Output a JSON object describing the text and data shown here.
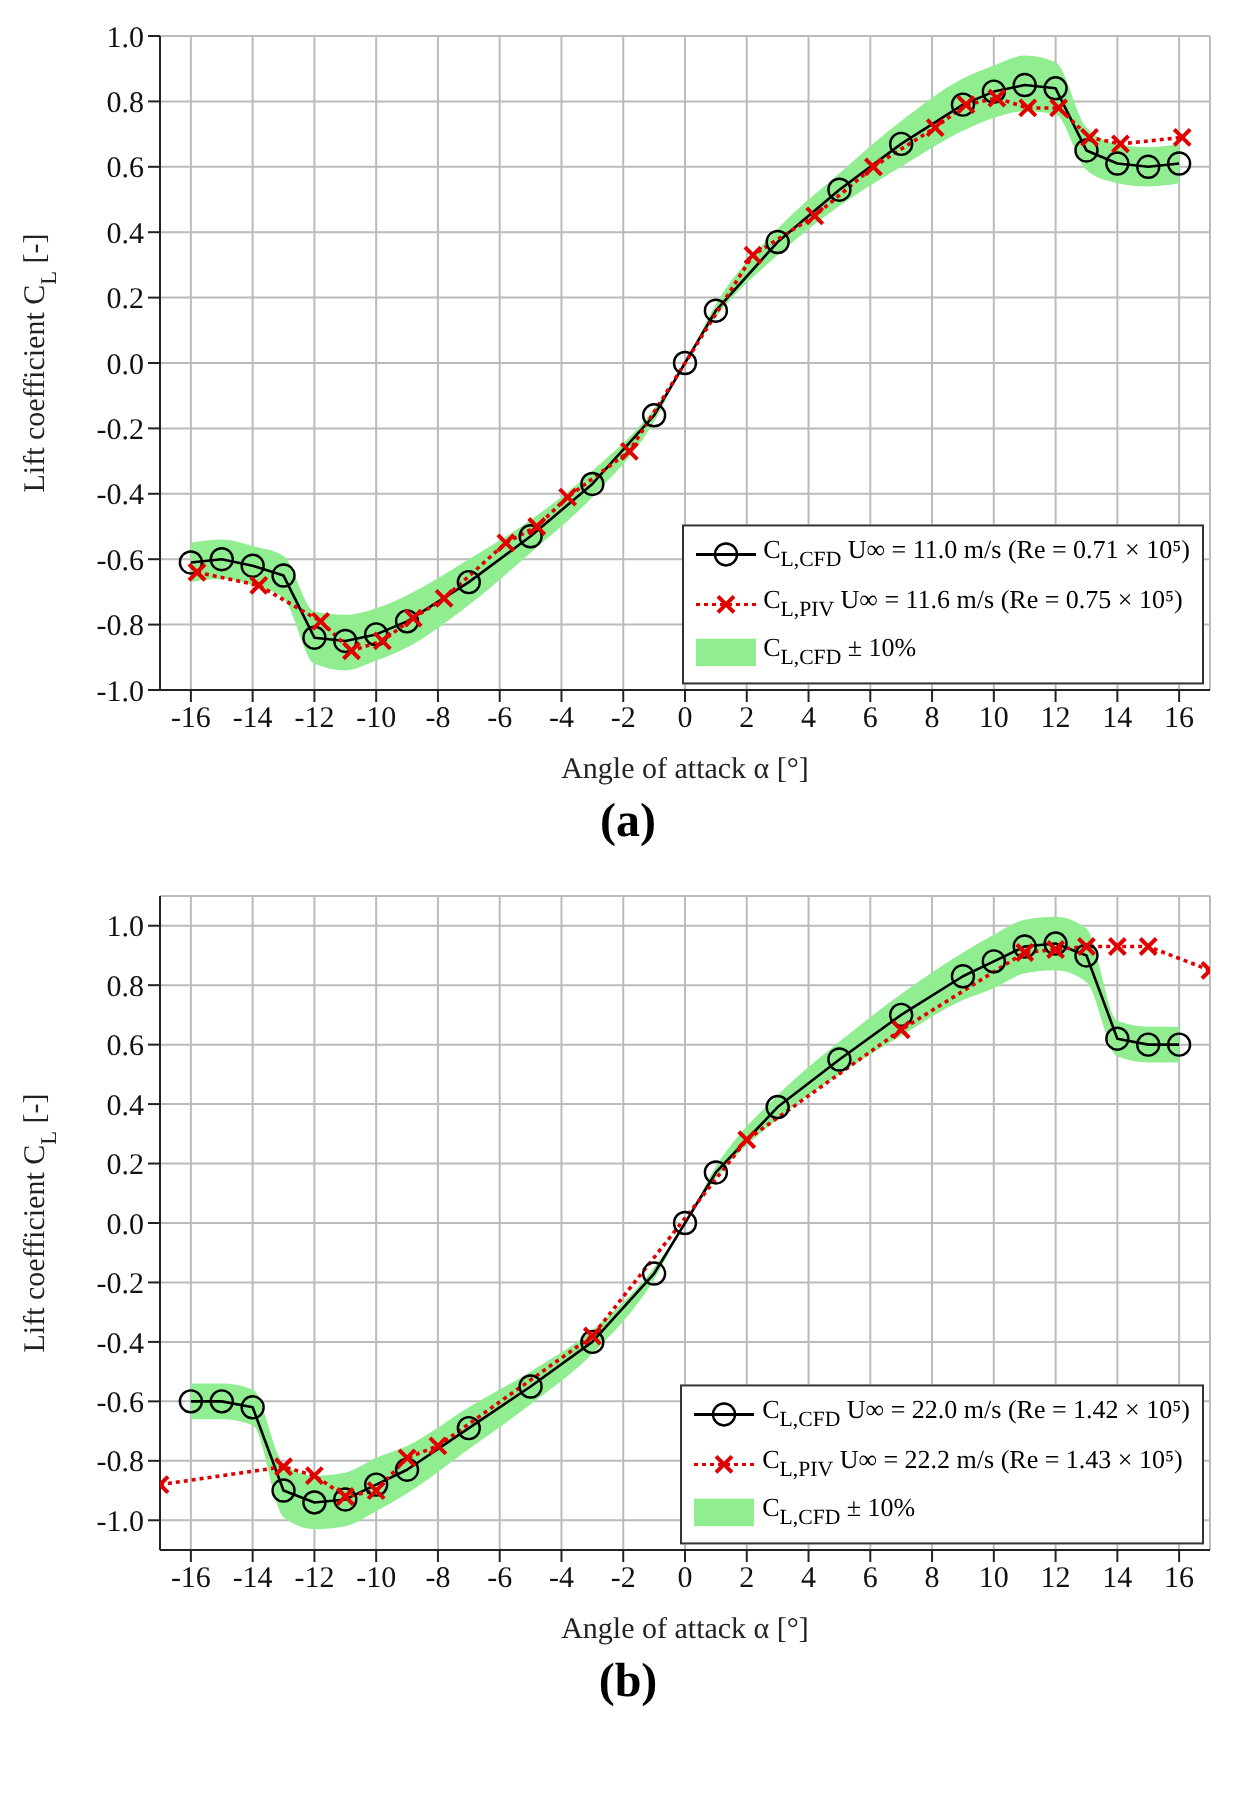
{
  "chart_data": [
    {
      "type": "line",
      "title": "(a)",
      "xlabel": "Angle of attack α [°]",
      "ylabel": "Lift coefficient C$_{L}$ [-]",
      "xlim": [
        -17,
        17
      ],
      "xticks": [
        -16,
        -14,
        -12,
        -10,
        -8,
        -6,
        -4,
        -2,
        0,
        2,
        4,
        6,
        8,
        10,
        12,
        14,
        16
      ],
      "ylim": [
        -1,
        1
      ],
      "yticks": [
        {
          "value": -1,
          "label": "-1.0"
        },
        -0.8,
        -0.6,
        -0.4,
        -0.2,
        {
          "value": 0,
          "label": "0.0"
        },
        0.2,
        0.4,
        0.6,
        0.8,
        {
          "value": 1,
          "label": "1.0"
        }
      ],
      "grid": true,
      "legend": "bottom right",
      "annotations": [
        "C$_{L,CFD}$ ± 10%"
      ],
      "series": [
        {
          "name": "C$_{L,CFD}$ U∞ = 11.0 m/s (Re = 0.71 × 10⁵)",
          "color": "#000000",
          "marker": "circle",
          "line_style": "solid",
          "x": [
            -16,
            -15,
            -14,
            -13,
            -12,
            -11,
            -10,
            -9,
            -7,
            -5,
            -3,
            -1,
            0,
            1,
            3,
            5,
            7,
            9,
            10,
            11,
            12,
            13,
            14,
            15,
            16
          ],
          "values": [
            -0.61,
            -0.6,
            -0.62,
            -0.65,
            -0.84,
            -0.85,
            -0.83,
            -0.79,
            -0.67,
            -0.53,
            -0.37,
            -0.16,
            0,
            0.16,
            0.37,
            0.53,
            0.67,
            0.79,
            0.83,
            0.85,
            0.84,
            0.65,
            0.61,
            0.6,
            0.61
          ],
          "lower": [
            -0.67,
            -0.66,
            -0.68,
            -0.72,
            -0.92,
            -0.94,
            -0.91,
            -0.87,
            -0.74,
            -0.58,
            -0.41,
            -0.18,
            0,
            0.14,
            0.33,
            0.48,
            0.6,
            0.71,
            0.75,
            0.77,
            0.76,
            0.59,
            0.55,
            0.54,
            0.55
          ],
          "upper": [
            -0.55,
            -0.54,
            -0.56,
            -0.59,
            -0.76,
            -0.77,
            -0.75,
            -0.71,
            -0.6,
            -0.48,
            -0.33,
            -0.14,
            0,
            0.18,
            0.41,
            0.58,
            0.74,
            0.87,
            0.91,
            0.94,
            0.92,
            0.72,
            0.67,
            0.66,
            0.67
          ]
        },
        {
          "name": "C$_{L,PIV}$ U∞ = 11.6 m/s (Re = 0.75 × 10⁵)",
          "color": "#e00000",
          "marker": "cross",
          "line_style": "dotted",
          "x": [
            -15.8,
            -13.8,
            -11.8,
            -10.8,
            -9.8,
            -8.8,
            -7.8,
            -5.8,
            -4.8,
            -3.8,
            -1.8,
            2.2,
            4.2,
            6.1,
            8.1,
            9.1,
            10.1,
            11.1,
            12.1,
            13.1,
            14.1,
            16.1
          ],
          "values": [
            -0.64,
            -0.68,
            -0.79,
            -0.88,
            -0.85,
            -0.78,
            -0.72,
            -0.55,
            -0.5,
            -0.41,
            -0.27,
            0.33,
            0.45,
            0.6,
            0.72,
            0.79,
            0.81,
            0.78,
            0.78,
            0.69,
            0.67,
            0.69
          ]
        }
      ]
    },
    {
      "type": "line",
      "title": "(b)",
      "xlabel": "Angle of attack α [°]",
      "ylabel": "Lift coefficient C$_{L}$ [-]",
      "xlim": [
        -17,
        17
      ],
      "xticks": [
        -16,
        -14,
        -12,
        -10,
        -8,
        -6,
        -4,
        -2,
        0,
        2,
        4,
        6,
        8,
        10,
        12,
        14,
        16
      ],
      "ylim": [
        -1.1,
        1.1
      ],
      "yticks": [
        {
          "value": -1,
          "label": "-1.0"
        },
        -0.8,
        -0.6,
        -0.4,
        -0.2,
        {
          "value": 0,
          "label": "0.0"
        },
        0.2,
        0.4,
        0.6,
        0.8,
        {
          "value": 1,
          "label": "1.0"
        }
      ],
      "grid": true,
      "legend": "bottom right",
      "annotations": [
        "C$_{L,CFD}$ ± 10%"
      ],
      "series": [
        {
          "name": "C$_{L,CFD}$ U∞ = 22.0 m/s (Re = 1.42 × 10⁵)",
          "color": "#000000",
          "marker": "circle",
          "line_style": "solid",
          "x": [
            -16,
            -15,
            -14,
            -13,
            -12,
            -11,
            -10,
            -9,
            -7,
            -5,
            -3,
            -1,
            0,
            1,
            3,
            5,
            7,
            9,
            10,
            11,
            12,
            13,
            14,
            15,
            16
          ],
          "values": [
            -0.6,
            -0.6,
            -0.62,
            -0.9,
            -0.94,
            -0.93,
            -0.88,
            -0.83,
            -0.69,
            -0.55,
            -0.4,
            -0.17,
            0,
            0.17,
            0.39,
            0.55,
            0.7,
            0.83,
            0.88,
            0.93,
            0.94,
            0.9,
            0.62,
            0.6,
            0.6
          ],
          "lower": [
            -0.66,
            -0.66,
            -0.68,
            -0.99,
            -1.03,
            -1.02,
            -0.97,
            -0.91,
            -0.76,
            -0.61,
            -0.44,
            -0.19,
            0,
            0.15,
            0.35,
            0.5,
            0.63,
            0.75,
            0.79,
            0.84,
            0.85,
            0.81,
            0.56,
            0.54,
            0.54
          ],
          "upper": [
            -0.54,
            -0.54,
            -0.56,
            -0.81,
            -0.85,
            -0.84,
            -0.79,
            -0.75,
            -0.62,
            -0.5,
            -0.36,
            -0.15,
            0,
            0.19,
            0.43,
            0.61,
            0.77,
            0.91,
            0.97,
            1.02,
            1.03,
            0.99,
            0.68,
            0.66,
            0.66
          ]
        },
        {
          "name": "C$_{L,PIV}$ U∞ = 22.2 m/s (Re = 1.43 × 10⁵)",
          "color": "#e00000",
          "marker": "cross",
          "line_style": "dotted",
          "x": [
            -17,
            -13,
            -12,
            -11,
            -10,
            -9,
            -8,
            -3,
            2,
            7,
            11,
            12,
            13,
            14,
            15,
            17
          ],
          "values": [
            -0.88,
            -0.82,
            -0.85,
            -0.92,
            -0.9,
            -0.79,
            -0.75,
            -0.38,
            0.28,
            0.65,
            0.91,
            0.92,
            0.93,
            0.93,
            0.93,
            0.85
          ]
        }
      ]
    }
  ]
}
